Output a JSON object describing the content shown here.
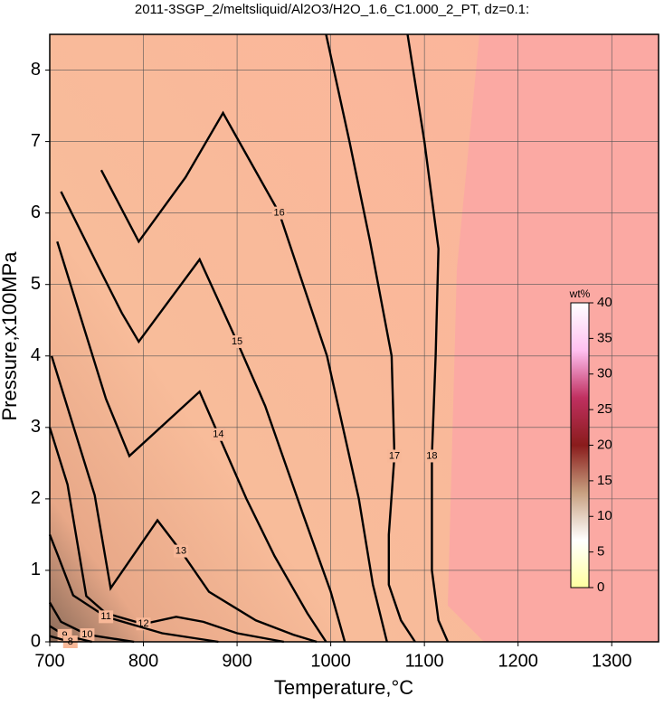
{
  "chart_data": {
    "type": "contour",
    "title": "2011-3SGP_2/meltsliquid/Al2O3/H2O_1.6_C1.000_2_PT, dz=0.1:",
    "x_label": "Temperature,°C",
    "y_label": "Pressure,x100MPa",
    "xlim": [
      700,
      1350
    ],
    "ylim": [
      0,
      8.5
    ],
    "xticks": [
      700,
      800,
      900,
      1000,
      1100,
      1200,
      1300
    ],
    "yticks": [
      0,
      1,
      2,
      3,
      4,
      5,
      6,
      7,
      8
    ],
    "grid": true,
    "line_color": "#000000",
    "contours": [
      {
        "level": 18,
        "x": [
          1082,
          1100,
          1115,
          1112,
          1108,
          1108,
          1115,
          1125
        ],
        "y": [
          8.5,
          7.0,
          5.5,
          4.0,
          2.6,
          1.0,
          0.3,
          0
        ]
      },
      {
        "level": 17,
        "x": [
          995,
          1020,
          1042,
          1065,
          1068,
          1062,
          1062,
          1075,
          1090
        ],
        "y": [
          8.5,
          7.0,
          5.6,
          4.0,
          2.6,
          1.5,
          0.8,
          0.3,
          0
        ]
      },
      {
        "level": 16,
        "x": [
          755,
          795,
          845,
          885,
          945,
          996,
          1030,
          1045,
          1060
        ],
        "y": [
          6.6,
          5.6,
          6.5,
          7.4,
          6.0,
          4.0,
          2.0,
          0.8,
          0
        ]
      },
      {
        "level": 15,
        "x": [
          712,
          750,
          777,
          795,
          860,
          900,
          930,
          970,
          1000,
          1015
        ],
        "y": [
          6.3,
          5.3,
          4.6,
          4.2,
          5.35,
          4.2,
          3.3,
          1.8,
          0.7,
          0
        ]
      },
      {
        "level": 14,
        "x": [
          708,
          760,
          785,
          860,
          880,
          910,
          940,
          975,
          995
        ],
        "y": [
          5.6,
          3.4,
          2.6,
          3.5,
          2.9,
          2.0,
          1.2,
          0.4,
          0
        ]
      },
      {
        "level": 13,
        "x": [
          702,
          748,
          765,
          815,
          840,
          870,
          920,
          960,
          985
        ],
        "y": [
          4.0,
          2.05,
          0.75,
          1.7,
          1.27,
          0.7,
          0.3,
          0.1,
          0
        ]
      },
      {
        "level": 12,
        "x": [
          700,
          719,
          739,
          760,
          800,
          835,
          864,
          900,
          950
        ],
        "y": [
          3.0,
          2.2,
          0.64,
          0.4,
          0.25,
          0.35,
          0.28,
          0.12,
          0
        ]
      },
      {
        "level": 11,
        "x": [
          700,
          709,
          725,
          760,
          820,
          880
        ],
        "y": [
          1.5,
          1.2,
          0.65,
          0.35,
          0.12,
          0
        ]
      },
      {
        "level": 10,
        "x": [
          700,
          712,
          740,
          790
        ],
        "y": [
          0.55,
          0.28,
          0.1,
          0
        ]
      },
      {
        "level": 9,
        "x": [
          700,
          716,
          745
        ],
        "y": [
          0.22,
          0.09,
          0
        ]
      },
      {
        "level": 8,
        "x": [
          700,
          722
        ],
        "y": [
          0.08,
          0
        ]
      }
    ],
    "colorbar": {
      "label": "wt%",
      "lim": [
        0,
        40
      ],
      "ticks": [
        0,
        5,
        10,
        15,
        20,
        25,
        30,
        35,
        40
      ],
      "colors": [
        "#ffffa0",
        "#ffffff",
        "#c8a080",
        "#8a1c1c",
        "#c03060",
        "#ffc0f0",
        "#ffffff"
      ]
    }
  }
}
